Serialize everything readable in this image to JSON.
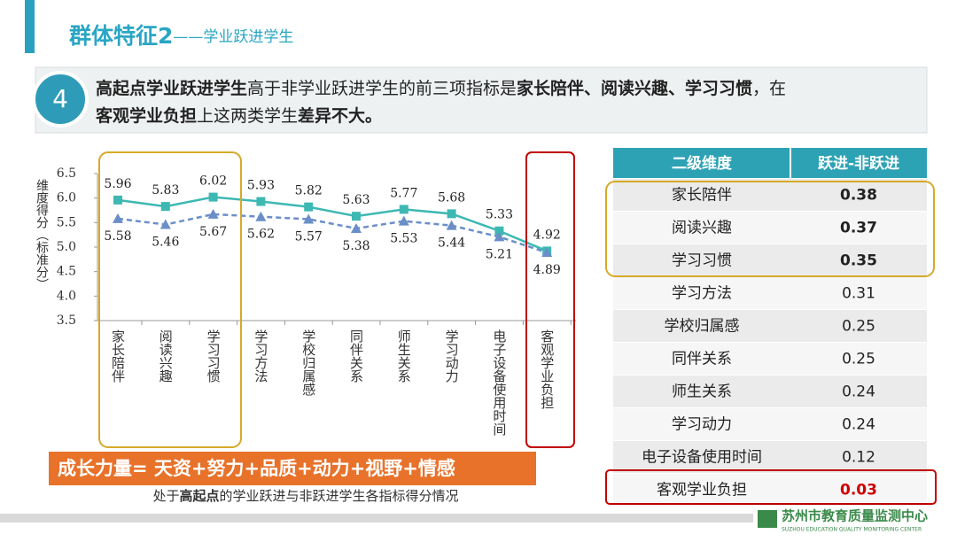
{
  "header": {
    "title": "群体特征2",
    "subtitle": "——学业跃进学生"
  },
  "callout": {
    "number": "4",
    "lines": [
      [
        {
          "text": "高起点学业跃进学生",
          "bold": true
        },
        {
          "text": "高于非学业跃进学生的前三项指标是"
        },
        {
          "text": "家长陪伴、阅读兴趣、学习习惯",
          "bold": true
        },
        {
          "text": "，在"
        }
      ],
      [
        {
          "text": "客观学业负担",
          "bold": true
        },
        {
          "text": "上这两类学生"
        },
        {
          "text": "差异不大。",
          "bold": true
        }
      ]
    ]
  },
  "chart_data": {
    "type": "line",
    "y_label": "维度得分（标准分）",
    "categories": [
      "家长陪伴",
      "阅读兴趣",
      "学习习惯",
      "学习方法",
      "学校归属感",
      "同伴关系",
      "师生关系",
      "学习动力",
      "电子设备使用时间",
      "客观学业负担"
    ],
    "series": [
      {
        "color": "#3db8b3",
        "marker": "square",
        "dashed": false,
        "values": [
          5.96,
          5.83,
          6.02,
          5.93,
          5.82,
          5.63,
          5.77,
          5.68,
          5.33,
          4.92
        ]
      },
      {
        "color": "#6a8fc8",
        "marker": "triangle",
        "dashed": true,
        "values": [
          5.58,
          5.46,
          5.67,
          5.62,
          5.57,
          5.38,
          5.53,
          5.44,
          5.21,
          4.89
        ]
      }
    ],
    "ylim": [
      3.5,
      6.5
    ],
    "yticks": [
      3.5,
      {
        "value": 4,
        "label": "4.0"
      },
      4.5,
      {
        "value": 5,
        "label": "5.0"
      },
      5.5,
      {
        "value": 6,
        "label": "6.0"
      },
      6.5
    ]
  },
  "banner": "成长力量= 天资+努力+品质+动力+视野+情感",
  "caption": [
    {
      "text": "处于"
    },
    {
      "text": "高起点",
      "bold": true
    },
    {
      "text": "的学业跃进与非跃进学生各指标得分情况"
    }
  ],
  "table": {
    "header": [
      "二级维度",
      "跃进-非跃进"
    ],
    "rows": [
      {
        "name": "家长陪伴",
        "value": 0.38,
        "bold": true
      },
      {
        "name": "阅读兴趣",
        "value": 0.37,
        "bold": true
      },
      {
        "name": "学习习惯",
        "value": 0.35,
        "bold": true
      },
      {
        "name": "学习方法",
        "value": 0.31
      },
      {
        "name": "学校归属感",
        "value": 0.25
      },
      {
        "name": "同伴关系",
        "value": 0.25
      },
      {
        "name": "师生关系",
        "value": 0.24
      },
      {
        "name": "学习动力",
        "value": 0.24
      },
      {
        "name": "电子设备使用时间",
        "value": 0.12
      },
      {
        "name": "客观学业负担",
        "value": 0.03,
        "bold": true,
        "color": "#d00000"
      }
    ]
  },
  "footer": {
    "org": "苏州市教育质量监测中心",
    "org_en": "SUZHOU EDUCATION QUALITY MONITORING CENTER"
  }
}
